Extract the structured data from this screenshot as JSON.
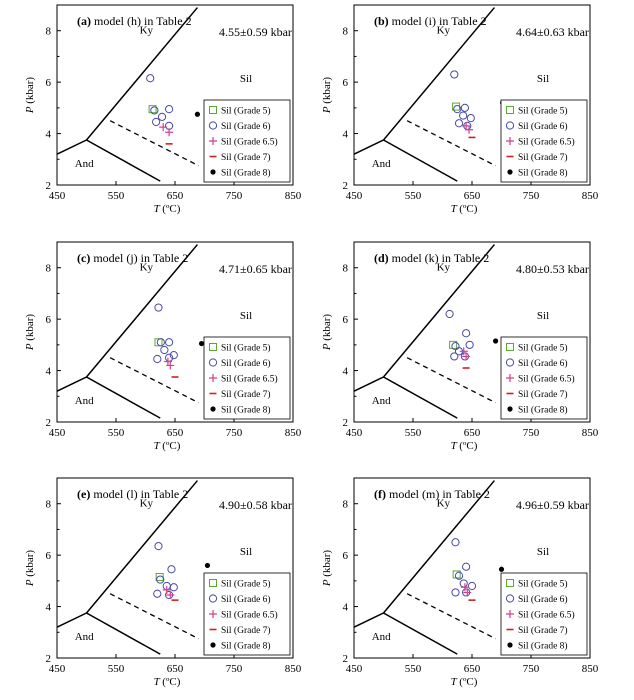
{
  "axis": {
    "x_label": "T",
    "x_unit": "(ºC)",
    "y_label": "P",
    "y_unit": "(kbar)",
    "xlim": [
      450,
      850
    ],
    "ylim": [
      2,
      9
    ],
    "x_ticks": [
      "450",
      "550",
      "650",
      "750",
      "850"
    ],
    "y_ticks": [
      "2",
      "4",
      "6",
      "8"
    ],
    "x_tick_values": [
      450,
      550,
      650,
      750,
      850
    ],
    "y_tick_values": [
      2,
      4,
      6,
      8
    ]
  },
  "field_labels": {
    "ky": "Ky",
    "sil": "Sil",
    "and": "And"
  },
  "legend": [
    {
      "label": "Sil (Grade 5)",
      "marker": "square",
      "color": "#5aa832"
    },
    {
      "label": "Sil (Grade 6)",
      "marker": "circle",
      "color": "#4a4aa8"
    },
    {
      "label": "Sil (Grade 6.5)",
      "marker": "plus",
      "color": "#d1408a"
    },
    {
      "label": "Sil (Grade 7)",
      "marker": "dash",
      "color": "#d22020"
    },
    {
      "label": "Sil (Grade 8)",
      "marker": "dot",
      "color": "#000000"
    }
  ],
  "phase_boundaries": {
    "ky_sil": [
      [
        500,
        3.75
      ],
      [
        688,
        8.9
      ]
    ],
    "and_ky": [
      [
        450,
        3.2
      ],
      [
        500,
        3.75
      ]
    ],
    "and_sil": [
      [
        500,
        3.75
      ],
      [
        625,
        2.15
      ]
    ],
    "dashed": [
      [
        540,
        4.5
      ],
      [
        690,
        2.75
      ]
    ]
  },
  "chart_data": [
    {
      "type": "scatter",
      "panel": "a",
      "title_tag": "(a)",
      "title_rest": " model (h) in Table 2",
      "annotation": "4.55±0.59 kbar",
      "series": [
        {
          "name": "Sil (Grade 5)",
          "points": [
            [
              612,
              4.95
            ]
          ]
        },
        {
          "name": "Sil (Grade 6)",
          "points": [
            [
              608,
              6.15
            ],
            [
              615,
              4.9
            ],
            [
              628,
              4.65
            ],
            [
              640,
              4.95
            ],
            [
              618,
              4.45
            ],
            [
              640,
              4.3
            ]
          ]
        },
        {
          "name": "Sil (Grade 6.5)",
          "points": [
            [
              630,
              4.25
            ],
            [
              640,
              4.05
            ]
          ]
        },
        {
          "name": "Sil (Grade 7)",
          "points": [
            [
              640,
              3.6
            ]
          ]
        },
        {
          "name": "Sil (Grade 8)",
          "points": [
            [
              688,
              4.75
            ]
          ]
        }
      ]
    },
    {
      "type": "scatter",
      "panel": "b",
      "title_tag": "(b)",
      "title_rest": " model (i) in Table 2",
      "annotation": "4.64±0.63 kbar",
      "series": [
        {
          "name": "Sil (Grade 5)",
          "points": [
            [
              623,
              5.05
            ]
          ]
        },
        {
          "name": "Sil (Grade 6)",
          "points": [
            [
              620,
              6.3
            ],
            [
              625,
              4.95
            ],
            [
              638,
              5.0
            ],
            [
              648,
              4.6
            ],
            [
              635,
              4.7
            ],
            [
              628,
              4.4
            ],
            [
              642,
              4.3
            ]
          ]
        },
        {
          "name": "Sil (Grade 6.5)",
          "points": [
            [
              640,
              4.3
            ],
            [
              645,
              4.15
            ]
          ]
        },
        {
          "name": "Sil (Grade 7)",
          "points": [
            [
              650,
              3.85
            ]
          ]
        },
        {
          "name": "Sil (Grade 8)",
          "points": [
            [
              702,
              5.2
            ]
          ]
        }
      ]
    },
    {
      "type": "scatter",
      "panel": "c",
      "title_tag": "(c)",
      "title_rest": " model (j) in Table 2",
      "annotation": "4.71±0.65 kbar",
      "series": [
        {
          "name": "Sil (Grade 5)",
          "points": [
            [
              622,
              5.1
            ]
          ]
        },
        {
          "name": "Sil (Grade 6)",
          "points": [
            [
              622,
              6.45
            ],
            [
              626,
              5.1
            ],
            [
              640,
              5.1
            ],
            [
              648,
              4.6
            ],
            [
              632,
              4.8
            ],
            [
              620,
              4.45
            ],
            [
              640,
              4.5
            ]
          ]
        },
        {
          "name": "Sil (Grade 6.5)",
          "points": [
            [
              638,
              4.35
            ],
            [
              642,
              4.2
            ]
          ]
        },
        {
          "name": "Sil (Grade 7)",
          "points": [
            [
              650,
              3.75
            ]
          ]
        },
        {
          "name": "Sil (Grade 8)",
          "points": [
            [
              695,
              5.05
            ]
          ]
        }
      ]
    },
    {
      "type": "scatter",
      "panel": "d",
      "title_tag": "(d)",
      "title_rest": " model (k) in Table 2",
      "annotation": "4.80±0.53 kbar",
      "series": [
        {
          "name": "Sil (Grade 5)",
          "points": [
            [
              618,
              5.0
            ]
          ]
        },
        {
          "name": "Sil (Grade 6)",
          "points": [
            [
              612,
              6.2
            ],
            [
              622,
              4.95
            ],
            [
              640,
              5.45
            ],
            [
              646,
              5.0
            ],
            [
              628,
              4.75
            ],
            [
              620,
              4.55
            ],
            [
              638,
              4.55
            ]
          ]
        },
        {
          "name": "Sil (Grade 6.5)",
          "points": [
            [
              636,
              4.75
            ],
            [
              640,
              4.55
            ]
          ]
        },
        {
          "name": "Sil (Grade 7)",
          "points": [
            [
              640,
              4.1
            ]
          ]
        },
        {
          "name": "Sil (Grade 8)",
          "points": [
            [
              690,
              5.15
            ]
          ]
        }
      ]
    },
    {
      "type": "scatter",
      "panel": "e",
      "title_tag": "(e)",
      "title_rest": " model (l) in Table 2",
      "annotation": "4.90±0.58 kbar",
      "series": [
        {
          "name": "Sil (Grade 5)",
          "points": [
            [
              624,
              5.15
            ]
          ]
        },
        {
          "name": "Sil (Grade 6)",
          "points": [
            [
              622,
              6.35
            ],
            [
              625,
              5.05
            ],
            [
              644,
              5.45
            ],
            [
              648,
              4.75
            ],
            [
              636,
              4.8
            ],
            [
              620,
              4.5
            ],
            [
              640,
              4.45
            ]
          ]
        },
        {
          "name": "Sil (Grade 6.5)",
          "points": [
            [
              636,
              4.65
            ],
            [
              642,
              4.45
            ]
          ]
        },
        {
          "name": "Sil (Grade 7)",
          "points": [
            [
              650,
              4.25
            ]
          ]
        },
        {
          "name": "Sil (Grade 8)",
          "points": [
            [
              705,
              5.6
            ]
          ]
        }
      ]
    },
    {
      "type": "scatter",
      "panel": "f",
      "title_tag": "(f)",
      "title_rest": " model (m) in Table 2",
      "annotation": "4.96±0.59 kbar",
      "series": [
        {
          "name": "Sil (Grade 5)",
          "points": [
            [
              624,
              5.25
            ]
          ]
        },
        {
          "name": "Sil (Grade 6)",
          "points": [
            [
              622,
              6.5
            ],
            [
              628,
              5.2
            ],
            [
              640,
              5.55
            ],
            [
              650,
              4.8
            ],
            [
              636,
              4.9
            ],
            [
              622,
              4.55
            ],
            [
              640,
              4.55
            ]
          ]
        },
        {
          "name": "Sil (Grade 6.5)",
          "points": [
            [
              638,
              4.75
            ],
            [
              642,
              4.55
            ]
          ]
        },
        {
          "name": "Sil (Grade 7)",
          "points": [
            [
              650,
              4.25
            ]
          ]
        },
        {
          "name": "Sil (Grade 8)",
          "points": [
            [
              700,
              5.45
            ]
          ]
        }
      ]
    }
  ]
}
